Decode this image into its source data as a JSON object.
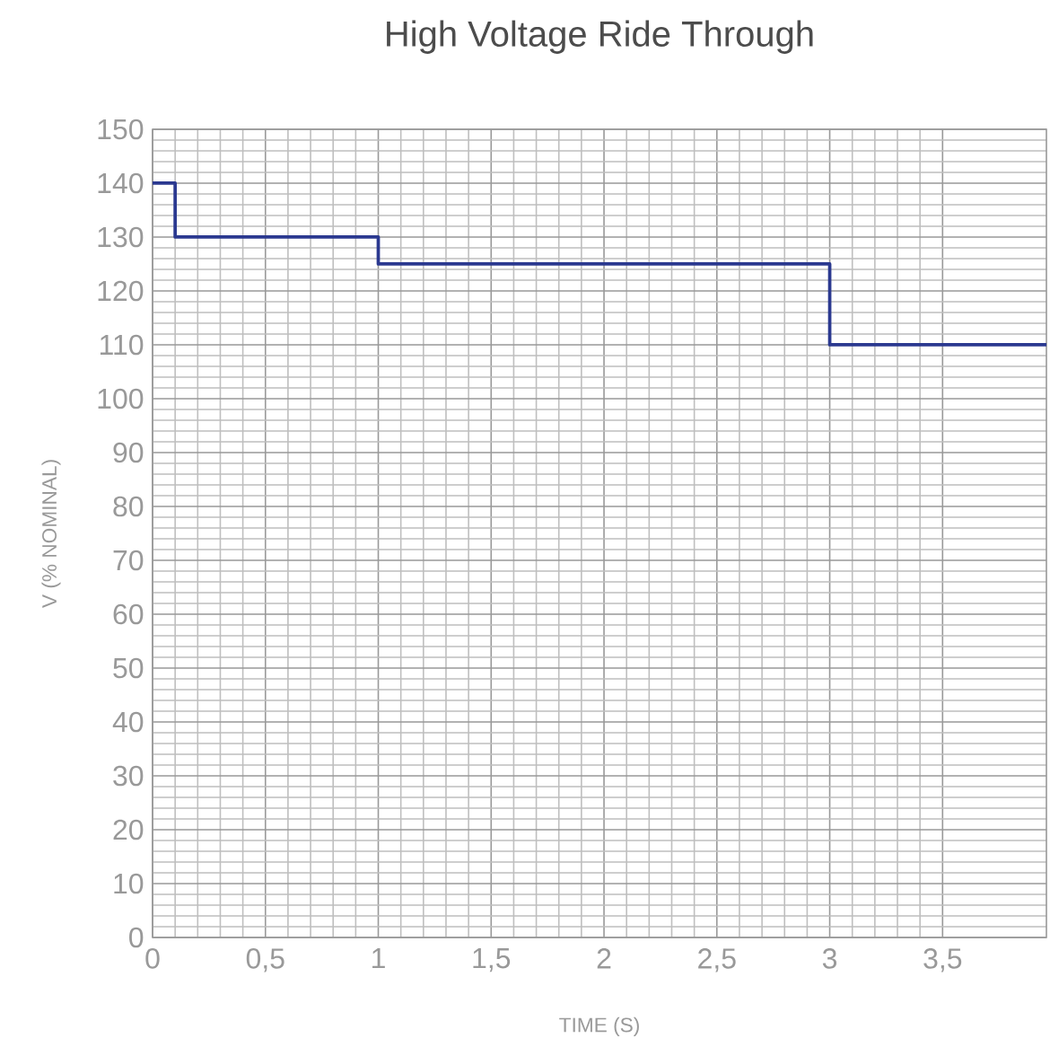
{
  "chart_data": {
    "type": "step",
    "title": "High Voltage Ride Through",
    "xlabel": "TIME (S)",
    "ylabel": "V (% NOMINAL)",
    "x": [
      0,
      0.1,
      1,
      3,
      3.96
    ],
    "values": [
      140,
      130,
      125,
      110,
      110
    ],
    "color": "#2b3990",
    "xlim": [
      0,
      3.96
    ],
    "ylim": [
      0,
      150
    ],
    "xticks": [
      0,
      {
        "value": 0.5,
        "label": "0,5"
      },
      1,
      {
        "value": 1.5,
        "label": "1,5"
      },
      2,
      {
        "value": 2.5,
        "label": "2,5"
      },
      3,
      {
        "value": 3.5,
        "label": "3,5"
      }
    ],
    "yticks": [
      0,
      10,
      20,
      30,
      40,
      50,
      60,
      70,
      80,
      90,
      100,
      110,
      120,
      130,
      140,
      150
    ],
    "grid": true
  }
}
